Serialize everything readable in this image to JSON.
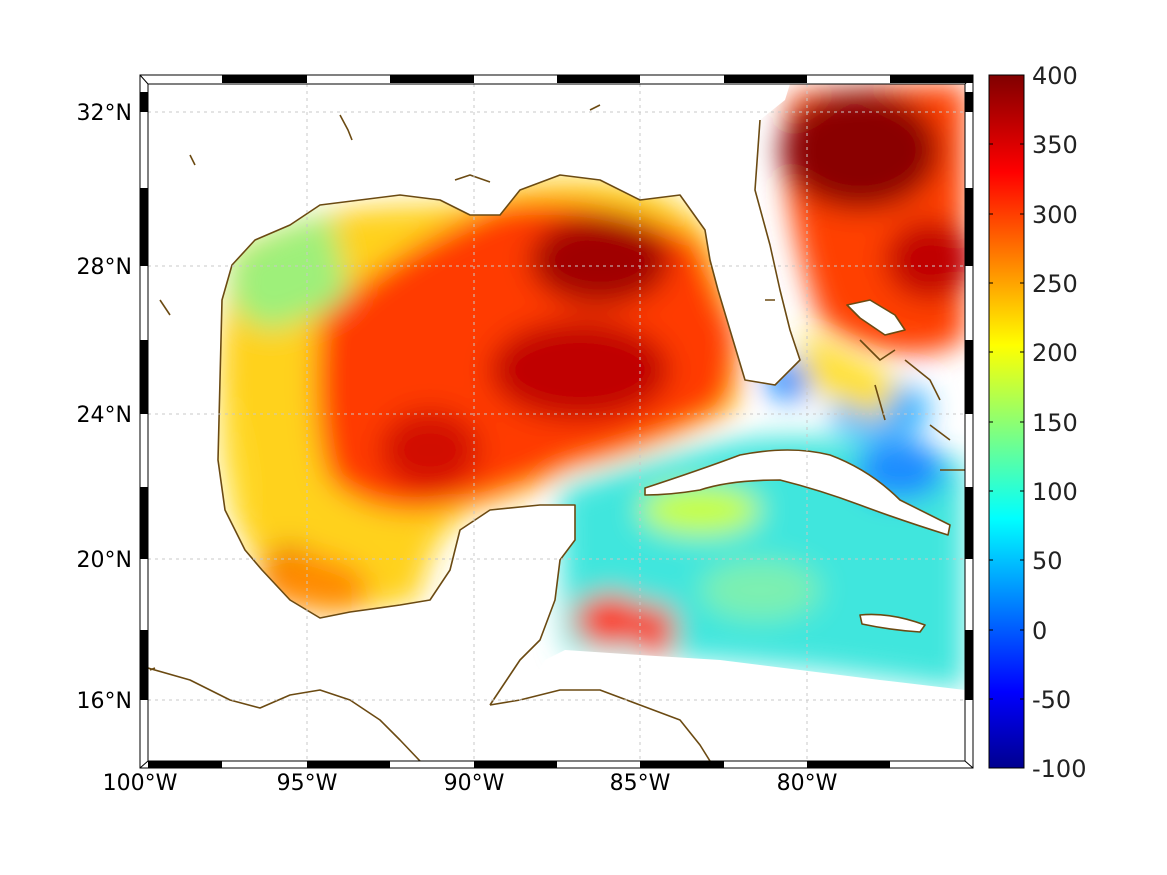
{
  "map": {
    "lon_ticks": [
      "100°W",
      "95°W",
      "90°W",
      "85°W",
      "80°W"
    ],
    "lat_ticks": [
      "32°N",
      "28°N",
      "24°N",
      "20°N",
      "16°N"
    ]
  },
  "colorbar": {
    "ticks": [
      "400",
      "350",
      "300",
      "250",
      "200",
      "150",
      "100",
      "50",
      "0",
      "-50",
      "-100"
    ],
    "colormap": "jet",
    "range": [
      -100,
      400
    ]
  },
  "colors": {
    "coastline": "#6b4a12",
    "frame": "#000000",
    "grid": "#c8c8c8"
  }
}
